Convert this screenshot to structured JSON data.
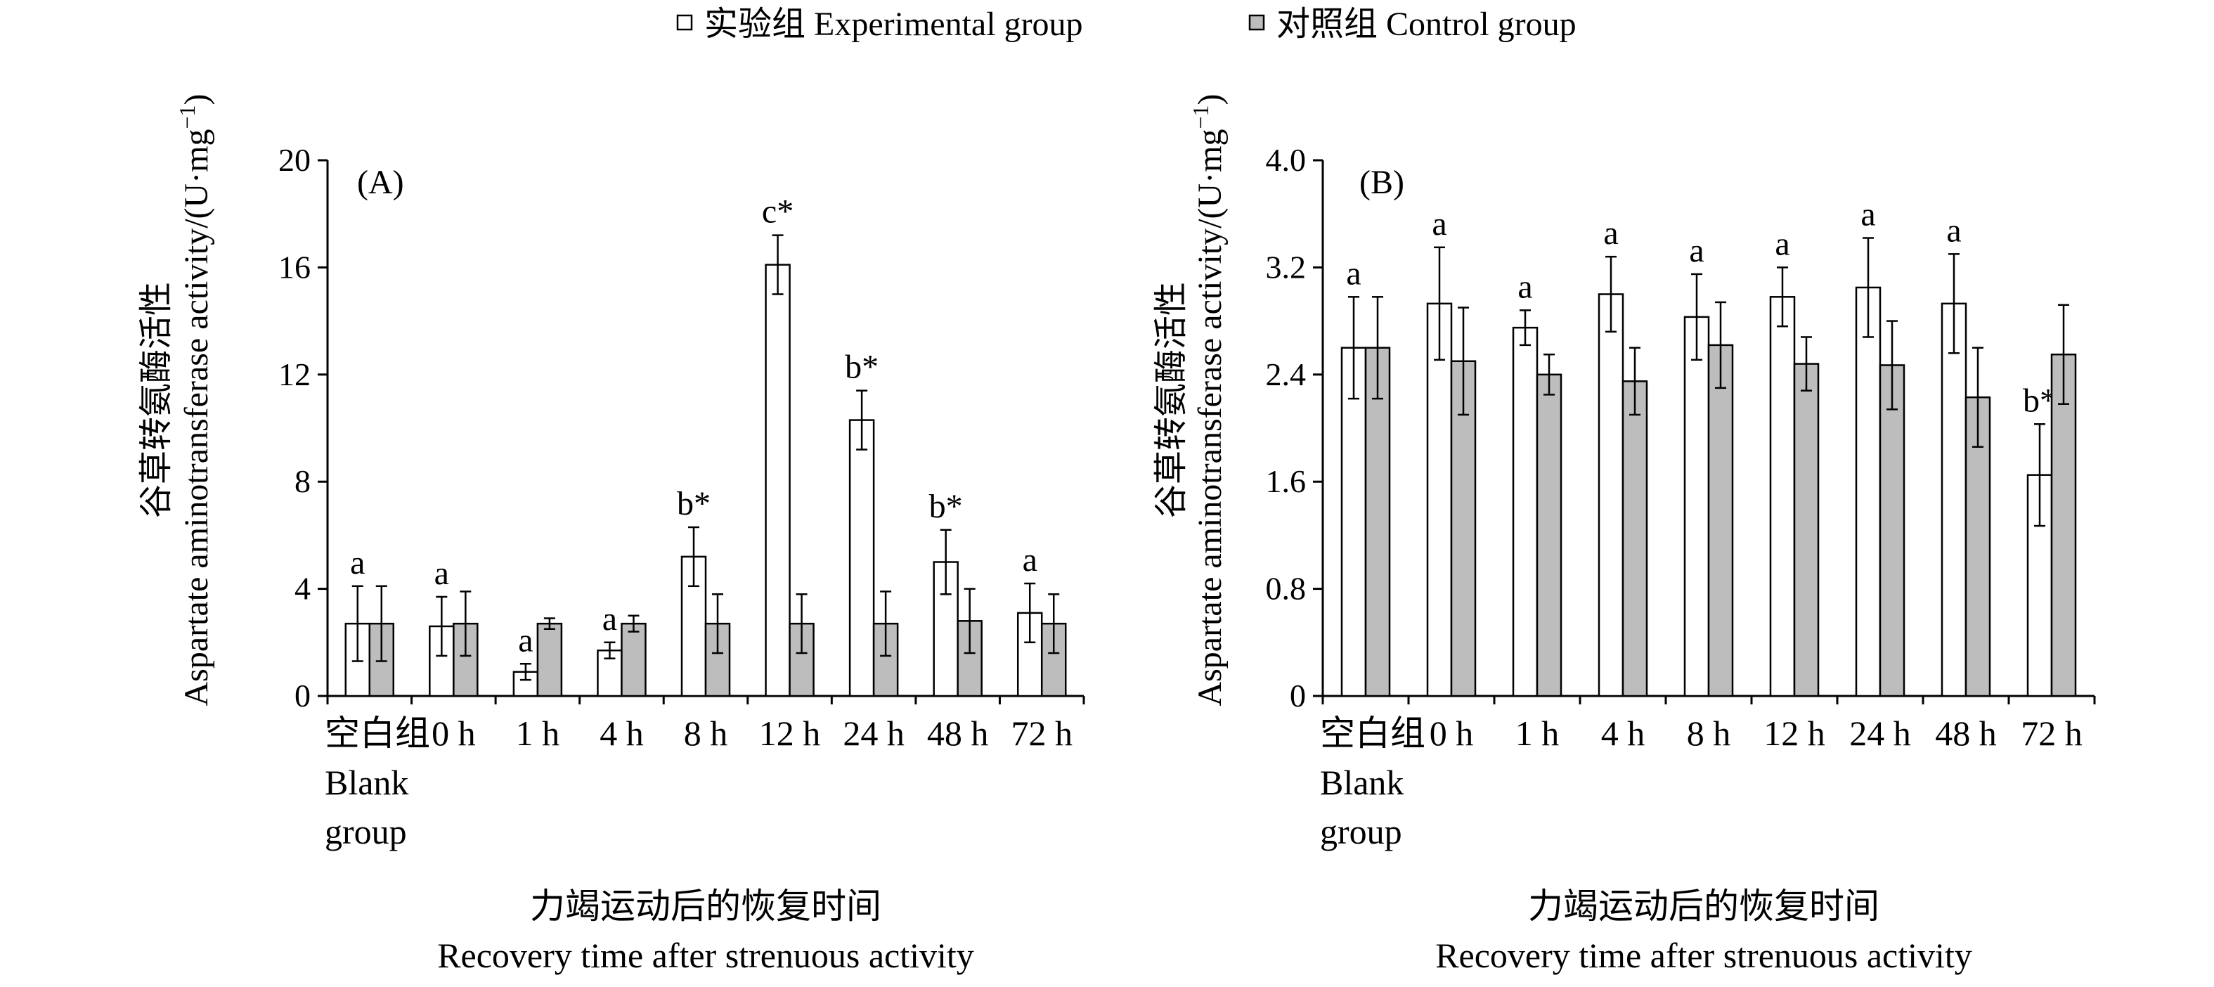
{
  "legend": {
    "experimental": "实验组 Experimental group",
    "control": "对照组 Control group"
  },
  "colors": {
    "experimental": "#ffffff",
    "control": "#bdbdbd",
    "stroke": "#000000"
  },
  "chart_data": [
    {
      "type": "bar",
      "panel_label": "(A)",
      "categories": [
        "空白组|Blank|group",
        "0 h",
        "1 h",
        "4 h",
        "8 h",
        "12 h",
        "24 h",
        "48 h",
        "72 h"
      ],
      "ylabel_cn": "谷草转氨酶活性",
      "ylabel_en": "Aspartate aminotransferase activity/(U·mg",
      "ylabel_sup": "−1",
      "ylabel_end": ")",
      "xlabel_cn": "力竭运动后的恢复时间",
      "xlabel_en": "Recovery time after strenuous activity",
      "ylim": [
        0,
        20
      ],
      "yticks": [
        "0",
        "4",
        "8",
        "12",
        "16",
        "20"
      ],
      "series": [
        {
          "name": "实验组 Experimental group",
          "values": [
            2.7,
            2.6,
            0.9,
            1.7,
            5.2,
            16.1,
            10.3,
            5.0,
            3.1
          ],
          "errors": [
            1.4,
            1.1,
            0.3,
            0.3,
            1.1,
            1.1,
            1.1,
            1.2,
            1.1
          ],
          "labels": [
            "a",
            "a",
            "a",
            "a",
            "b*",
            "c*",
            "b*",
            "b*",
            "a"
          ]
        },
        {
          "name": "对照组 Control group",
          "values": [
            2.7,
            2.7,
            2.7,
            2.7,
            2.7,
            2.7,
            2.7,
            2.8,
            2.7
          ],
          "errors": [
            1.4,
            1.2,
            0.2,
            0.3,
            1.1,
            1.1,
            1.2,
            1.2,
            1.1
          ]
        }
      ]
    },
    {
      "type": "bar",
      "panel_label": "(B)",
      "categories": [
        "空白组|Blank|group",
        "0 h",
        "1 h",
        "4 h",
        "8 h",
        "12 h",
        "24 h",
        "48 h",
        "72 h"
      ],
      "ylabel_cn": "谷草转氨酶活性",
      "ylabel_en": "Aspartate aminotransferase activity/(U·mg",
      "ylabel_sup": "−1",
      "ylabel_end": ")",
      "xlabel_cn": "力竭运动后的恢复时间",
      "xlabel_en": "Recovery time after strenuous activity",
      "ylim": [
        0,
        4.0
      ],
      "yticks": [
        "0",
        "0.8",
        "1.6",
        "2.4",
        "3.2",
        "4.0"
      ],
      "series": [
        {
          "name": "实验组 Experimental group",
          "values": [
            2.6,
            2.93,
            2.75,
            3.0,
            2.83,
            2.98,
            3.05,
            2.93,
            1.65
          ],
          "errors": [
            0.38,
            0.42,
            0.13,
            0.28,
            0.32,
            0.22,
            0.37,
            0.37,
            0.38
          ],
          "labels": [
            "a",
            "a",
            "a",
            "a",
            "a",
            "a",
            "a",
            "a",
            "b*"
          ]
        },
        {
          "name": "对照组 Control group",
          "values": [
            2.6,
            2.5,
            2.4,
            2.35,
            2.62,
            2.48,
            2.47,
            2.23,
            2.55
          ],
          "errors": [
            0.38,
            0.4,
            0.15,
            0.25,
            0.32,
            0.2,
            0.33,
            0.37,
            0.37
          ]
        }
      ]
    }
  ]
}
